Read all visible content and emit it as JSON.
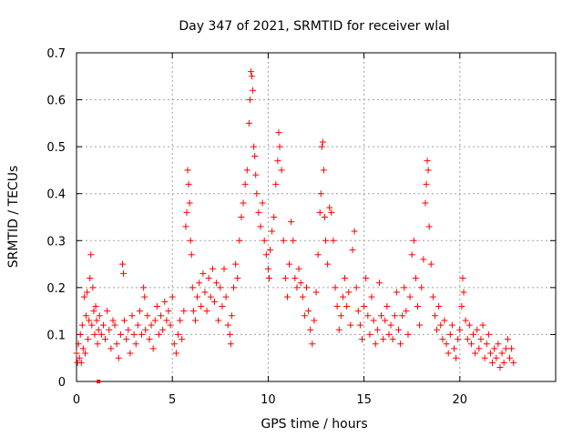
{
  "chart_data": {
    "type": "scatter",
    "title": "Day 347 of 2021, SRMTID for receiver wlal",
    "xlabel": "GPS time / hours",
    "ylabel": "SRMTID / TECUs",
    "xlim": [
      0,
      25
    ],
    "ylim": [
      0,
      0.7
    ],
    "grid": true,
    "marker": "+",
    "color": "#ff0000",
    "xticks": [
      0,
      5,
      10,
      15,
      20
    ],
    "xtick_labels": [
      "0",
      "5",
      "10",
      "15",
      "20"
    ],
    "yticks": [
      0,
      0.1,
      0.2,
      0.3,
      0.4,
      0.5,
      0.6,
      0.7
    ],
    "ytick_labels": [
      "0",
      "0.1",
      "0.2",
      "0.3",
      "0.4",
      "0.5",
      "0.6",
      "0.7"
    ],
    "series": [
      {
        "name": "SRMTID",
        "points": [
          [
            0.0,
            0.06
          ],
          [
            0.05,
            0.04
          ],
          [
            0.1,
            0.08
          ],
          [
            0.15,
            0.05
          ],
          [
            0.2,
            0.1
          ],
          [
            0.25,
            0.04
          ],
          [
            0.3,
            0.12
          ],
          [
            0.35,
            0.07
          ],
          [
            0.4,
            0.18
          ],
          [
            0.45,
            0.06
          ],
          [
            0.5,
            0.14
          ],
          [
            0.55,
            0.19
          ],
          [
            0.6,
            0.09
          ],
          [
            0.65,
            0.13
          ],
          [
            0.7,
            0.22
          ],
          [
            0.75,
            0.27
          ],
          [
            0.8,
            0.12
          ],
          [
            0.85,
            0.2
          ],
          [
            0.9,
            0.15
          ],
          [
            0.95,
            0.1
          ],
          [
            1.0,
            0.16
          ],
          [
            1.05,
            0.13
          ],
          [
            1.1,
            0.08
          ],
          [
            1.15,
            0.11
          ],
          [
            1.2,
            0.14
          ],
          [
            1.3,
            0.1
          ],
          [
            1.4,
            0.12
          ],
          [
            1.5,
            0.09
          ],
          [
            1.6,
            0.15
          ],
          [
            1.7,
            0.11
          ],
          [
            1.8,
            0.07
          ],
          [
            1.9,
            0.13
          ],
          [
            2.0,
            0.12
          ],
          [
            2.1,
            0.08
          ],
          [
            2.2,
            0.05
          ],
          [
            2.3,
            0.1
          ],
          [
            2.4,
            0.25
          ],
          [
            2.45,
            0.23
          ],
          [
            2.5,
            0.13
          ],
          [
            2.6,
            0.09
          ],
          [
            2.7,
            0.11
          ],
          [
            2.8,
            0.06
          ],
          [
            2.9,
            0.14
          ],
          [
            3.0,
            0.1
          ],
          [
            3.1,
            0.08
          ],
          [
            3.2,
            0.12
          ],
          [
            3.3,
            0.15
          ],
          [
            3.4,
            0.1
          ],
          [
            3.5,
            0.2
          ],
          [
            3.55,
            0.18
          ],
          [
            3.6,
            0.11
          ],
          [
            3.7,
            0.14
          ],
          [
            3.8,
            0.09
          ],
          [
            3.9,
            0.12
          ],
          [
            4.0,
            0.07
          ],
          [
            4.1,
            0.13
          ],
          [
            4.2,
            0.16
          ],
          [
            4.3,
            0.1
          ],
          [
            4.4,
            0.14
          ],
          [
            4.5,
            0.11
          ],
          [
            4.6,
            0.17
          ],
          [
            4.7,
            0.13
          ],
          [
            4.8,
            0.15
          ],
          [
            4.9,
            0.12
          ],
          [
            5.0,
            0.18
          ],
          [
            5.1,
            0.08
          ],
          [
            5.2,
            0.06
          ],
          [
            5.3,
            0.1
          ],
          [
            5.4,
            0.13
          ],
          [
            5.5,
            0.09
          ],
          [
            5.6,
            0.15
          ],
          [
            5.7,
            0.33
          ],
          [
            5.75,
            0.36
          ],
          [
            5.8,
            0.45
          ],
          [
            5.85,
            0.42
          ],
          [
            5.9,
            0.38
          ],
          [
            5.95,
            0.3
          ],
          [
            6.0,
            0.27
          ],
          [
            6.05,
            0.2
          ],
          [
            6.1,
            0.15
          ],
          [
            6.2,
            0.13
          ],
          [
            6.3,
            0.18
          ],
          [
            6.4,
            0.21
          ],
          [
            6.5,
            0.16
          ],
          [
            6.6,
            0.23
          ],
          [
            6.7,
            0.19
          ],
          [
            6.8,
            0.15
          ],
          [
            6.9,
            0.22
          ],
          [
            7.0,
            0.18
          ],
          [
            7.1,
            0.24
          ],
          [
            7.2,
            0.17
          ],
          [
            7.3,
            0.21
          ],
          [
            7.4,
            0.13
          ],
          [
            7.5,
            0.2
          ],
          [
            7.6,
            0.16
          ],
          [
            7.7,
            0.24
          ],
          [
            7.8,
            0.18
          ],
          [
            7.9,
            0.12
          ],
          [
            8.0,
            0.1
          ],
          [
            8.05,
            0.08
          ],
          [
            8.1,
            0.14
          ],
          [
            8.2,
            0.2
          ],
          [
            8.3,
            0.25
          ],
          [
            8.4,
            0.22
          ],
          [
            8.5,
            0.3
          ],
          [
            8.6,
            0.35
          ],
          [
            8.7,
            0.38
          ],
          [
            8.8,
            0.42
          ],
          [
            8.9,
            0.45
          ],
          [
            9.0,
            0.55
          ],
          [
            9.05,
            0.6
          ],
          [
            9.1,
            0.66
          ],
          [
            9.15,
            0.65
          ],
          [
            9.2,
            0.62
          ],
          [
            9.25,
            0.5
          ],
          [
            9.3,
            0.48
          ],
          [
            9.35,
            0.44
          ],
          [
            9.4,
            0.4
          ],
          [
            9.5,
            0.36
          ],
          [
            9.6,
            0.33
          ],
          [
            9.7,
            0.38
          ],
          [
            9.8,
            0.3
          ],
          [
            9.9,
            0.27
          ],
          [
            10.0,
            0.24
          ],
          [
            10.05,
            0.22
          ],
          [
            10.1,
            0.28
          ],
          [
            10.2,
            0.32
          ],
          [
            10.3,
            0.35
          ],
          [
            10.4,
            0.42
          ],
          [
            10.5,
            0.47
          ],
          [
            10.55,
            0.53
          ],
          [
            10.6,
            0.5
          ],
          [
            10.7,
            0.45
          ],
          [
            10.8,
            0.3
          ],
          [
            10.9,
            0.22
          ],
          [
            11.0,
            0.18
          ],
          [
            11.1,
            0.25
          ],
          [
            11.2,
            0.34
          ],
          [
            11.3,
            0.3
          ],
          [
            11.4,
            0.22
          ],
          [
            11.5,
            0.2
          ],
          [
            11.6,
            0.24
          ],
          [
            11.7,
            0.21
          ],
          [
            11.8,
            0.18
          ],
          [
            11.9,
            0.14
          ],
          [
            12.0,
            0.2
          ],
          [
            12.1,
            0.15
          ],
          [
            12.2,
            0.11
          ],
          [
            12.3,
            0.08
          ],
          [
            12.4,
            0.13
          ],
          [
            12.5,
            0.19
          ],
          [
            12.6,
            0.27
          ],
          [
            12.7,
            0.36
          ],
          [
            12.75,
            0.4
          ],
          [
            12.8,
            0.5
          ],
          [
            12.85,
            0.51
          ],
          [
            12.9,
            0.45
          ],
          [
            12.95,
            0.35
          ],
          [
            13.0,
            0.3
          ],
          [
            13.1,
            0.25
          ],
          [
            13.2,
            0.37
          ],
          [
            13.3,
            0.36
          ],
          [
            13.4,
            0.3
          ],
          [
            13.5,
            0.2
          ],
          [
            13.6,
            0.16
          ],
          [
            13.7,
            0.11
          ],
          [
            13.8,
            0.14
          ],
          [
            13.9,
            0.18
          ],
          [
            14.0,
            0.22
          ],
          [
            14.1,
            0.16
          ],
          [
            14.2,
            0.19
          ],
          [
            14.3,
            0.12
          ],
          [
            14.4,
            0.28
          ],
          [
            14.5,
            0.32
          ],
          [
            14.6,
            0.2
          ],
          [
            14.7,
            0.15
          ],
          [
            14.8,
            0.12
          ],
          [
            14.9,
            0.09
          ],
          [
            15.0,
            0.16
          ],
          [
            15.1,
            0.22
          ],
          [
            15.2,
            0.14
          ],
          [
            15.3,
            0.1
          ],
          [
            15.4,
            0.18
          ],
          [
            15.5,
            0.13
          ],
          [
            15.6,
            0.08
          ],
          [
            15.7,
            0.11
          ],
          [
            15.8,
            0.21
          ],
          [
            15.9,
            0.14
          ],
          [
            16.0,
            0.09
          ],
          [
            16.1,
            0.13
          ],
          [
            16.2,
            0.16
          ],
          [
            16.3,
            0.1
          ],
          [
            16.4,
            0.12
          ],
          [
            16.5,
            0.09
          ],
          [
            16.6,
            0.14
          ],
          [
            16.7,
            0.19
          ],
          [
            16.8,
            0.11
          ],
          [
            16.9,
            0.08
          ],
          [
            17.0,
            0.14
          ],
          [
            17.1,
            0.2
          ],
          [
            17.2,
            0.15
          ],
          [
            17.3,
            0.1
          ],
          [
            17.4,
            0.18
          ],
          [
            17.5,
            0.27
          ],
          [
            17.6,
            0.3
          ],
          [
            17.7,
            0.22
          ],
          [
            17.8,
            0.16
          ],
          [
            17.9,
            0.12
          ],
          [
            18.0,
            0.2
          ],
          [
            18.1,
            0.26
          ],
          [
            18.2,
            0.38
          ],
          [
            18.25,
            0.42
          ],
          [
            18.3,
            0.47
          ],
          [
            18.35,
            0.45
          ],
          [
            18.4,
            0.33
          ],
          [
            18.5,
            0.25
          ],
          [
            18.6,
            0.18
          ],
          [
            18.7,
            0.14
          ],
          [
            18.8,
            0.11
          ],
          [
            18.9,
            0.16
          ],
          [
            19.0,
            0.12
          ],
          [
            19.1,
            0.09
          ],
          [
            19.2,
            0.13
          ],
          [
            19.3,
            0.08
          ],
          [
            19.4,
            0.06
          ],
          [
            19.5,
            0.1
          ],
          [
            19.6,
            0.12
          ],
          [
            19.7,
            0.07
          ],
          [
            19.8,
            0.05
          ],
          [
            19.9,
            0.09
          ],
          [
            20.0,
            0.11
          ],
          [
            20.1,
            0.16
          ],
          [
            20.15,
            0.22
          ],
          [
            20.2,
            0.19
          ],
          [
            20.3,
            0.13
          ],
          [
            20.4,
            0.09
          ],
          [
            20.5,
            0.12
          ],
          [
            20.6,
            0.08
          ],
          [
            20.7,
            0.1
          ],
          [
            20.8,
            0.06
          ],
          [
            20.9,
            0.11
          ],
          [
            21.0,
            0.07
          ],
          [
            21.1,
            0.09
          ],
          [
            21.2,
            0.12
          ],
          [
            21.3,
            0.05
          ],
          [
            21.4,
            0.08
          ],
          [
            21.5,
            0.1
          ],
          [
            21.6,
            0.06
          ],
          [
            21.7,
            0.04
          ],
          [
            21.8,
            0.07
          ],
          [
            21.9,
            0.05
          ],
          [
            22.0,
            0.08
          ],
          [
            22.1,
            0.03
          ],
          [
            22.2,
            0.06
          ],
          [
            22.3,
            0.04
          ],
          [
            22.4,
            0.07
          ],
          [
            22.5,
            0.09
          ],
          [
            22.6,
            0.05
          ],
          [
            22.7,
            0.07
          ],
          [
            22.8,
            0.04
          ]
        ]
      }
    ],
    "anomaly_points": [
      [
        1.15,
        0.0
      ]
    ]
  }
}
